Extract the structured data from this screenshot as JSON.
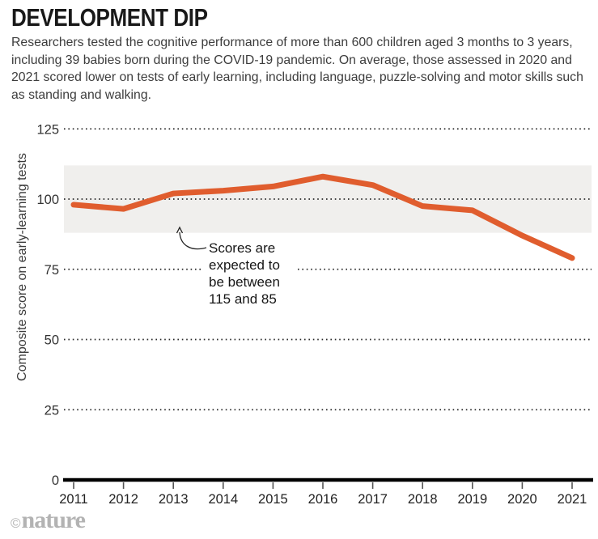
{
  "header": {
    "title": "DEVELOPMENT DIP",
    "description": "Researchers tested the cognitive performance of more than 600 children aged 3 months to 3 years, including 39 babies born during the COVID-19 pandemic. On average, those assessed in 2020 and 2021 scored lower on tests of early learning, including language, puzzle-solving and motor skills such as standing and walking."
  },
  "chart_data": {
    "type": "line",
    "title": "DEVELOPMENT DIP",
    "x": [
      2011,
      2012,
      2013,
      2014,
      2015,
      2016,
      2017,
      2018,
      2019,
      2020,
      2021
    ],
    "values": [
      98,
      96.5,
      102,
      103,
      104.5,
      108,
      105,
      97.5,
      96,
      87,
      79
    ],
    "ylabel": "Composite score on early-learning tests",
    "xlabel": "",
    "yticks": [
      0,
      25,
      50,
      75,
      100,
      125
    ],
    "ylim": [
      0,
      130
    ],
    "grid": "dotted-horizontal",
    "legend": "none",
    "expected_band": {
      "label_low": 85,
      "label_high": 115,
      "drawn_low": 88,
      "drawn_high": 112
    },
    "colors": {
      "line": "#e05d2e",
      "band": "#f0efed",
      "grid_dots": "#2a2a2a",
      "axis": "#000000"
    }
  },
  "annotation": {
    "lines": [
      "Scores are",
      "expected to",
      "be between",
      "115 and 85"
    ],
    "full_text": "Scores are expected to be between 115 and 85"
  },
  "footer": {
    "copyright_symbol": "©",
    "brand": "nature"
  }
}
